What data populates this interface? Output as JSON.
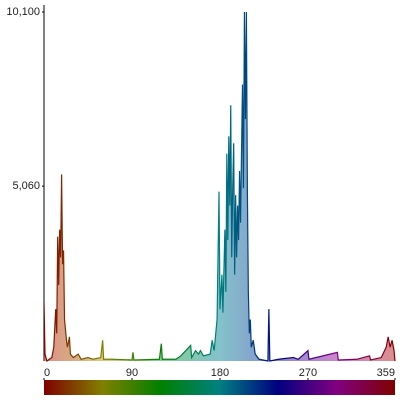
{
  "chart_data": {
    "type": "area",
    "x": [
      0,
      1,
      3,
      8,
      10,
      12,
      13,
      14,
      15,
      16,
      17,
      18,
      19,
      20,
      21,
      22,
      23,
      24,
      26,
      27,
      30,
      35,
      38,
      45,
      50,
      58,
      60,
      61,
      70,
      90,
      91,
      92,
      118,
      120,
      121,
      135,
      140,
      150,
      151,
      155,
      158,
      160,
      163,
      170,
      172,
      174,
      177,
      179,
      180,
      182,
      183,
      185,
      186,
      187,
      188,
      189,
      190,
      191,
      192,
      193,
      194,
      195,
      196,
      197,
      198,
      199,
      200,
      201,
      202,
      203,
      204,
      205,
      206,
      207,
      208,
      209,
      210,
      211,
      212,
      214,
      216,
      220,
      229,
      230,
      231,
      240,
      255,
      260,
      270,
      271,
      300,
      301,
      320,
      333,
      334,
      345,
      350,
      352,
      354,
      356,
      358,
      359
    ],
    "values": [
      1700,
      200,
      0,
      100,
      400,
      1500,
      800,
      3600,
      2200,
      3800,
      3000,
      5400,
      2800,
      3200,
      1200,
      900,
      600,
      400,
      700,
      200,
      100,
      200,
      50,
      100,
      50,
      100,
      600,
      50,
      50,
      30,
      250,
      30,
      50,
      500,
      50,
      50,
      150,
      450,
      100,
      300,
      200,
      300,
      150,
      200,
      600,
      300,
      1200,
      4900,
      1500,
      2500,
      1400,
      3800,
      2000,
      6000,
      3500,
      6500,
      4500,
      7400,
      3000,
      5000,
      6300,
      2500,
      4800,
      3000,
      4500,
      3500,
      5500,
      4000,
      6000,
      8000,
      5000,
      10100,
      7000,
      10100,
      5000,
      2000,
      800,
      1200,
      400,
      600,
      200,
      50,
      0,
      1500,
      0,
      50,
      100,
      50,
      300,
      50,
      250,
      30,
      50,
      150,
      30,
      100,
      400,
      700,
      400,
      600,
      300,
      0
    ],
    "xlim": [
      0,
      359
    ],
    "xticks": [
      0,
      90,
      180,
      270,
      359
    ],
    "ylim": [
      0,
      10100
    ],
    "yticks": [
      {
        "value": 5060,
        "label": "5,060"
      },
      {
        "value": 10100,
        "label": "10,100"
      }
    ]
  }
}
